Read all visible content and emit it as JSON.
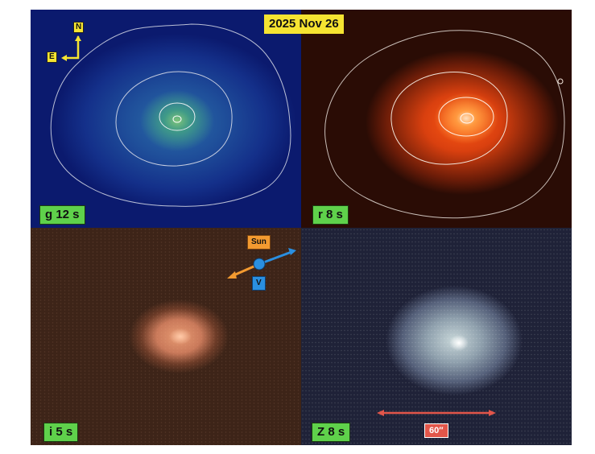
{
  "date": "2025 Nov 26",
  "compass": {
    "north": "N",
    "east": "E"
  },
  "panels": [
    {
      "id": "g",
      "label": "g 12 s",
      "color": "#1f4f9a"
    },
    {
      "id": "r",
      "label": "r 8 s",
      "color": "#ff5a14"
    },
    {
      "id": "i",
      "label": "i 5 s",
      "color": "#c9795a"
    },
    {
      "id": "z",
      "label": "Z 8 s",
      "color": "#8fa0ad"
    }
  ],
  "direction_markers": {
    "sun": "Sun",
    "velocity": "V",
    "sun_color": "#f39a30",
    "velocity_color": "#2a8fe0"
  },
  "scale_bar": {
    "label": "60″",
    "color": "#e2564a"
  }
}
